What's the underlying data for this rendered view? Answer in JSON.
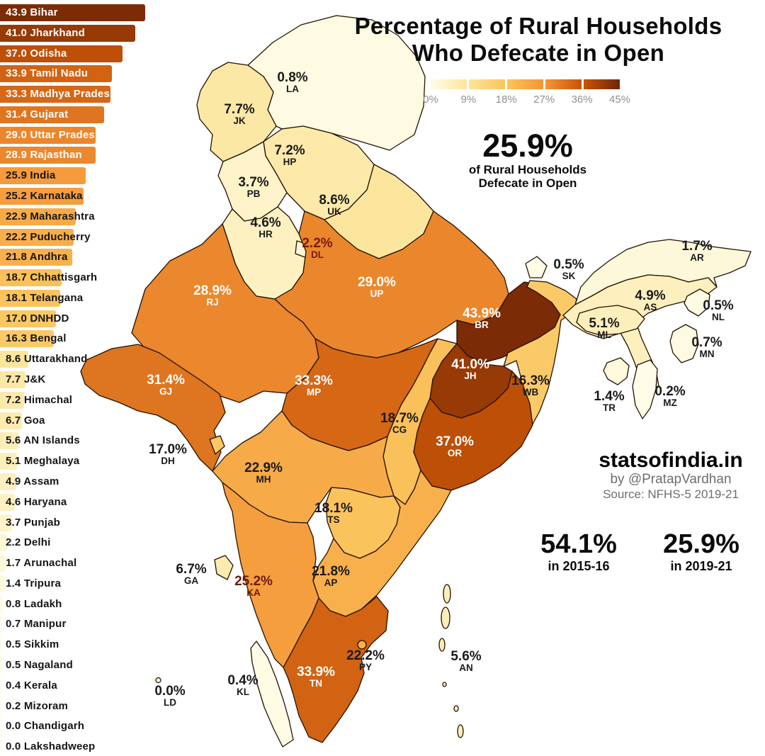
{
  "title": {
    "line1": "Percentage of Rural Households",
    "line2": "Who Defecate in Open"
  },
  "legend": {
    "ticks": [
      "0%",
      "9%",
      "18%",
      "27%",
      "36%",
      "45%"
    ]
  },
  "callout": {
    "value": "25.9%",
    "line1": "of Rural Households",
    "line2": "Defecate in Open"
  },
  "credits": {
    "site": "statsofindia.in",
    "byline": "by @PratapVardhan",
    "source": "Source: NFHS-5 2019-21"
  },
  "comparison": [
    {
      "value": "54.1%",
      "period": "in 2015-16"
    },
    {
      "value": "25.9%",
      "period": "in 2019-21"
    }
  ],
  "chart_data": {
    "type": "choropleth+bar",
    "metric": "Percentage of rural households who defecate in open",
    "colormap": {
      "domain": [
        0,
        45
      ],
      "stops": [
        "#FFFDE9",
        "#FCE59A",
        "#FBC45C",
        "#F49537",
        "#C75407",
        "#702505"
      ]
    },
    "label_colors": {
      "dark": "#1a1a1a",
      "light": "#ffffff",
      "overrides": {
        "DL": "#7a1a10",
        "KA": "#6e1a0c"
      }
    },
    "light_label_threshold": 27,
    "bars": [
      {
        "value": 43.9,
        "name": "Bihar"
      },
      {
        "value": 41.0,
        "name": "Jharkhand"
      },
      {
        "value": 37.0,
        "name": "Odisha"
      },
      {
        "value": 33.9,
        "name": "Tamil Nadu"
      },
      {
        "value": 33.3,
        "name": "Madhya Pradesh"
      },
      {
        "value": 31.4,
        "name": "Gujarat"
      },
      {
        "value": 29.0,
        "name": "Uttar Pradesh"
      },
      {
        "value": 28.9,
        "name": "Rajasthan"
      },
      {
        "value": 25.9,
        "name": "India"
      },
      {
        "value": 25.2,
        "name": "Karnataka"
      },
      {
        "value": 22.9,
        "name": "Maharashtra"
      },
      {
        "value": 22.2,
        "name": "Puducherry"
      },
      {
        "value": 21.8,
        "name": "Andhra"
      },
      {
        "value": 18.7,
        "name": "Chhattisgarh"
      },
      {
        "value": 18.1,
        "name": "Telangana"
      },
      {
        "value": 17.0,
        "name": "DNHDD"
      },
      {
        "value": 16.3,
        "name": "Bengal"
      },
      {
        "value": 8.6,
        "name": "Uttarakhand"
      },
      {
        "value": 7.7,
        "name": "J&K"
      },
      {
        "value": 7.2,
        "name": "Himachal"
      },
      {
        "value": 6.7,
        "name": "Goa"
      },
      {
        "value": 5.6,
        "name": "AN Islands"
      },
      {
        "value": 5.1,
        "name": "Meghalaya"
      },
      {
        "value": 4.9,
        "name": "Assam"
      },
      {
        "value": 4.6,
        "name": "Haryana"
      },
      {
        "value": 3.7,
        "name": "Punjab"
      },
      {
        "value": 2.2,
        "name": "Delhi"
      },
      {
        "value": 1.7,
        "name": "Arunachal"
      },
      {
        "value": 1.4,
        "name": "Tripura"
      },
      {
        "value": 0.8,
        "name": "Ladakh"
      },
      {
        "value": 0.7,
        "name": "Manipur"
      },
      {
        "value": 0.5,
        "name": "Sikkim"
      },
      {
        "value": 0.5,
        "name": "Nagaland"
      },
      {
        "value": 0.4,
        "name": "Kerala"
      },
      {
        "value": 0.2,
        "name": "Mizoram"
      },
      {
        "value": 0.0,
        "name": "Chandigarh"
      },
      {
        "value": 0.0,
        "name": "Lakshadweep"
      }
    ],
    "states": [
      {
        "code": "LA",
        "value": 0.8
      },
      {
        "code": "JK",
        "value": 7.7
      },
      {
        "code": "HP",
        "value": 7.2
      },
      {
        "code": "PB",
        "value": 3.7
      },
      {
        "code": "UK",
        "value": 8.6
      },
      {
        "code": "HR",
        "value": 4.6
      },
      {
        "code": "DL",
        "value": 2.2
      },
      {
        "code": "RJ",
        "value": 28.9
      },
      {
        "code": "UP",
        "value": 29.0
      },
      {
        "code": "BR",
        "value": 43.9
      },
      {
        "code": "SK",
        "value": 0.5
      },
      {
        "code": "WB",
        "value": 16.3
      },
      {
        "code": "JH",
        "value": 41.0
      },
      {
        "code": "OR",
        "value": 37.0
      },
      {
        "code": "GJ",
        "value": 31.4
      },
      {
        "code": "MP",
        "value": 33.3
      },
      {
        "code": "CG",
        "value": 18.7
      },
      {
        "code": "DH",
        "value": 17.0
      },
      {
        "code": "MH",
        "value": 22.9
      },
      {
        "code": "TS",
        "value": 18.1
      },
      {
        "code": "AP",
        "value": 21.8
      },
      {
        "code": "KA",
        "value": 25.2
      },
      {
        "code": "GA",
        "value": 6.7
      },
      {
        "code": "KL",
        "value": 0.4
      },
      {
        "code": "TN",
        "value": 33.9
      },
      {
        "code": "PY",
        "value": 22.2
      },
      {
        "code": "LD",
        "value": 0.0
      },
      {
        "code": "AN",
        "value": 5.6
      },
      {
        "code": "AR",
        "value": 1.7
      },
      {
        "code": "AS",
        "value": 4.9
      },
      {
        "code": "NL",
        "value": 0.5
      },
      {
        "code": "ML",
        "value": 5.1
      },
      {
        "code": "MN",
        "value": 0.7
      },
      {
        "code": "MZ",
        "value": 0.2
      },
      {
        "code": "TR",
        "value": 1.4
      }
    ]
  }
}
